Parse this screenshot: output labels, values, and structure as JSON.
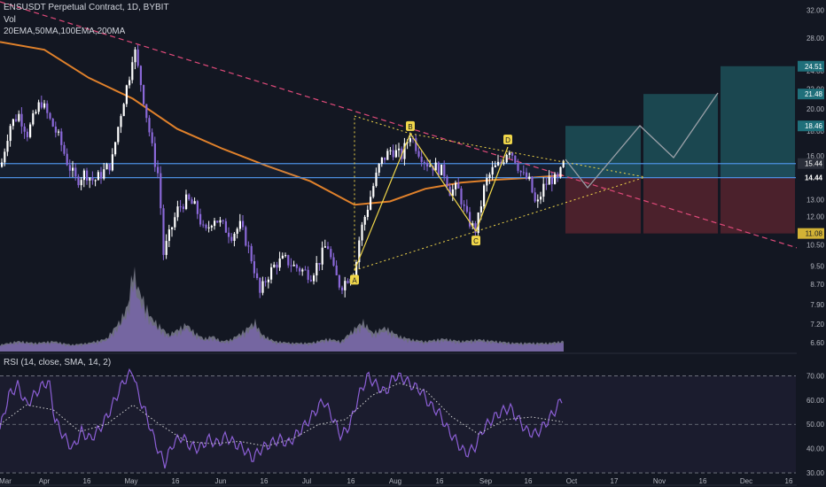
{
  "header": {
    "symbol_line": "ENSUSDT Perpetual Contract, 1D, BYBIT",
    "vol_label": "Vol",
    "ma_label": "20EMA,50MA,100EMA,200MA",
    "rsi_label": "RSI (14, close, SMA, 14, 2)"
  },
  "colors": {
    "background": "#131722",
    "candle": "#ffffff",
    "candle_alt": "#8a68d8",
    "volume_up": "#b7b7c8",
    "volume_down": "#7d60c0",
    "ma": "#e0812b",
    "resistance_line": "#e04a7a",
    "pattern": "#f0d64a",
    "horizontal": "#4d8fe0",
    "target_fill": "#1f5860",
    "stop_fill": "#5a2430",
    "rsi_line": "#8c5fd6",
    "rsi_sma": "#d0d0d0",
    "axis_text": "#b2b5be"
  },
  "chart_data": [
    {
      "type": "candlestick",
      "title": "ENSUSDT Perpetual Contract, 1D, BYBIT",
      "yscale": "log",
      "ylim": [
        6.3,
        33
      ],
      "x_ticks": [
        "Mar",
        "Apr",
        "16",
        "May",
        "16",
        "Jun",
        "16",
        "Jul",
        "16",
        "Aug",
        "16",
        "Sep",
        "16",
        "Oct",
        "17",
        "Nov",
        "16",
        "Dec",
        "16"
      ],
      "y_ticks": [
        32.0,
        28.0,
        24.0,
        22.0,
        20.0,
        18.0,
        16.0,
        13.0,
        12.0,
        10.5,
        9.5,
        8.7,
        7.9,
        7.2,
        6.6
      ],
      "price_labels": [
        {
          "text": "24.51",
          "value": 24.51,
          "kind": "target"
        },
        {
          "text": "21.48",
          "value": 21.48,
          "kind": "target"
        },
        {
          "text": "18.46",
          "value": 18.46,
          "kind": "target"
        },
        {
          "text": "15.44",
          "value": 15.44,
          "kind": "last"
        },
        {
          "text": "14.44",
          "value": 14.44,
          "kind": "level"
        },
        {
          "text": "11.08",
          "value": 11.08,
          "kind": "stop"
        }
      ],
      "horizontal_levels": [
        15.44,
        14.44
      ],
      "close_path": [
        [
          0,
          15.2
        ],
        [
          10,
          18.5
        ],
        [
          20,
          19.5
        ],
        [
          30,
          17.8
        ],
        [
          45,
          20.8
        ],
        [
          55,
          19.0
        ],
        [
          65,
          17.5
        ],
        [
          75,
          15.5
        ],
        [
          85,
          14.2
        ],
        [
          95,
          14.8
        ],
        [
          105,
          14.2
        ],
        [
          115,
          14.8
        ],
        [
          125,
          15.5
        ],
        [
          135,
          19.5
        ],
        [
          145,
          23.5
        ],
        [
          150,
          27.0
        ],
        [
          155,
          24.0
        ],
        [
          165,
          19.0
        ],
        [
          172,
          16.0
        ],
        [
          178,
          14.5
        ],
        [
          183,
          10.0
        ],
        [
          190,
          11.0
        ],
        [
          200,
          12.5
        ],
        [
          210,
          13.0
        ],
        [
          220,
          12.5
        ],
        [
          230,
          11.0
        ],
        [
          240,
          12.0
        ],
        [
          250,
          11.5
        ],
        [
          260,
          11.0
        ],
        [
          270,
          11.5
        ],
        [
          278,
          10.5
        ],
        [
          285,
          9.5
        ],
        [
          292,
          8.3
        ],
        [
          300,
          9.0
        ],
        [
          310,
          9.6
        ],
        [
          320,
          9.8
        ],
        [
          330,
          9.5
        ],
        [
          340,
          9.3
        ],
        [
          350,
          9.1
        ],
        [
          360,
          9.8
        ],
        [
          368,
          10.6
        ],
        [
          375,
          9.3
        ],
        [
          383,
          8.6
        ],
        [
          392,
          9.0
        ],
        [
          400,
          9.4
        ],
        [
          405,
          11.0
        ],
        [
          415,
          12.8
        ],
        [
          428,
          15.5
        ],
        [
          440,
          16.5
        ],
        [
          452,
          16.0
        ],
        [
          462,
          17.8
        ],
        [
          470,
          16.5
        ],
        [
          480,
          15.5
        ],
        [
          490,
          15.2
        ],
        [
          500,
          14.8
        ],
        [
          507,
          13.5
        ],
        [
          515,
          13.8
        ],
        [
          525,
          12.0
        ],
        [
          535,
          11.2
        ],
        [
          540,
          12.2
        ],
        [
          546,
          14.0
        ],
        [
          555,
          15.0
        ],
        [
          565,
          15.5
        ],
        [
          573,
          16.7
        ],
        [
          580,
          15.8
        ],
        [
          588,
          14.6
        ],
        [
          596,
          14.2
        ],
        [
          604,
          12.5
        ],
        [
          612,
          13.8
        ],
        [
          620,
          14.4
        ],
        [
          628,
          14.2
        ],
        [
          635,
          15.44
        ]
      ],
      "moving_average": [
        [
          0,
          27.5
        ],
        [
          50,
          26.5
        ],
        [
          100,
          23.2
        ],
        [
          150,
          21.0
        ],
        [
          200,
          18.2
        ],
        [
          250,
          16.6
        ],
        [
          300,
          15.3
        ],
        [
          350,
          14.2
        ],
        [
          400,
          12.7
        ],
        [
          440,
          12.9
        ],
        [
          480,
          13.7
        ],
        [
          520,
          14.1
        ],
        [
          560,
          14.3
        ],
        [
          600,
          14.44
        ],
        [
          635,
          14.6
        ]
      ]
    },
    {
      "type": "area",
      "title": "Vol",
      "x_ticks": [
        "Mar",
        "Apr",
        "16",
        "May",
        "16",
        "Jun",
        "16",
        "Jul",
        "16",
        "Aug",
        "16",
        "Sep",
        "16",
        "Oct"
      ],
      "values_note": "relative volume 0-1",
      "volume_path": [
        [
          0,
          0.08
        ],
        [
          20,
          0.12
        ],
        [
          40,
          0.1
        ],
        [
          60,
          0.12
        ],
        [
          80,
          0.08
        ],
        [
          100,
          0.1
        ],
        [
          120,
          0.15
        ],
        [
          135,
          0.35
        ],
        [
          145,
          0.55
        ],
        [
          150,
          1.0
        ],
        [
          155,
          0.75
        ],
        [
          162,
          0.6
        ],
        [
          170,
          0.4
        ],
        [
          180,
          0.3
        ],
        [
          190,
          0.2
        ],
        [
          200,
          0.25
        ],
        [
          210,
          0.32
        ],
        [
          220,
          0.22
        ],
        [
          230,
          0.15
        ],
        [
          240,
          0.18
        ],
        [
          250,
          0.12
        ],
        [
          260,
          0.14
        ],
        [
          270,
          0.2
        ],
        [
          280,
          0.28
        ],
        [
          288,
          0.35
        ],
        [
          295,
          0.2
        ],
        [
          310,
          0.12
        ],
        [
          330,
          0.1
        ],
        [
          350,
          0.1
        ],
        [
          370,
          0.15
        ],
        [
          385,
          0.12
        ],
        [
          398,
          0.25
        ],
        [
          410,
          0.35
        ],
        [
          420,
          0.22
        ],
        [
          435,
          0.28
        ],
        [
          450,
          0.18
        ],
        [
          465,
          0.14
        ],
        [
          480,
          0.12
        ],
        [
          500,
          0.15
        ],
        [
          520,
          0.12
        ],
        [
          540,
          0.14
        ],
        [
          560,
          0.12
        ],
        [
          580,
          0.1
        ],
        [
          600,
          0.1
        ],
        [
          620,
          0.1
        ],
        [
          635,
          0.12
        ]
      ]
    },
    {
      "type": "line",
      "title": "RSI (14, close, SMA, 14, 2)",
      "ylim": [
        26,
        76
      ],
      "y_ticks": [
        70.0,
        60.0,
        50.0,
        40.0,
        30.0
      ],
      "reference_band": [
        30,
        70
      ],
      "series": [
        {
          "values": [
            [
              0,
              48
            ],
            [
              10,
              62
            ],
            [
              20,
              66
            ],
            [
              30,
              58
            ],
            [
              45,
              65
            ],
            [
              55,
              68
            ],
            [
              62,
              52
            ],
            [
              72,
              45
            ],
            [
              82,
              40
            ],
            [
              92,
              47
            ],
            [
              102,
              44
            ],
            [
              112,
              48
            ],
            [
              122,
              54
            ],
            [
              132,
              62
            ],
            [
              140,
              68
            ],
            [
              150,
              72
            ],
            [
              156,
              62
            ],
            [
              164,
              55
            ],
            [
              172,
              46
            ],
            [
              180,
              38
            ],
            [
              186,
              34
            ],
            [
              195,
              42
            ],
            [
              205,
              45
            ],
            [
              215,
              41
            ],
            [
              225,
              40
            ],
            [
              235,
              44
            ],
            [
              245,
              42
            ],
            [
              255,
              45
            ],
            [
              265,
              42
            ],
            [
              275,
              40
            ],
            [
              285,
              36
            ],
            [
              295,
              40
            ],
            [
              305,
              42
            ],
            [
              315,
              44
            ],
            [
              325,
              42
            ],
            [
              335,
              46
            ],
            [
              345,
              50
            ],
            [
              355,
              55
            ],
            [
              365,
              60
            ],
            [
              375,
              53
            ],
            [
              385,
              45
            ],
            [
              395,
              50
            ],
            [
              405,
              62
            ],
            [
              415,
              70
            ],
            [
              425,
              66
            ],
            [
              435,
              63
            ],
            [
              445,
              70
            ],
            [
              455,
              69
            ],
            [
              465,
              66
            ],
            [
              475,
              64
            ],
            [
              485,
              58
            ],
            [
              495,
              55
            ],
            [
              505,
              48
            ],
            [
              515,
              43
            ],
            [
              525,
              38
            ],
            [
              535,
              40
            ],
            [
              545,
              48
            ],
            [
              555,
              52
            ],
            [
              565,
              55
            ],
            [
              575,
              57
            ],
            [
              585,
              52
            ],
            [
              595,
              47
            ],
            [
              605,
              46
            ],
            [
              615,
              50
            ],
            [
              625,
              55
            ],
            [
              635,
              61
            ]
          ]
        },
        {
          "values": [
            [
              0,
              50
            ],
            [
              30,
              58
            ],
            [
              60,
              56
            ],
            [
              90,
              47
            ],
            [
              120,
              50
            ],
            [
              150,
              58
            ],
            [
              180,
              50
            ],
            [
              210,
              43
            ],
            [
              240,
              42
            ],
            [
              270,
              43
            ],
            [
              300,
              41
            ],
            [
              330,
              44
            ],
            [
              360,
              50
            ],
            [
              390,
              52
            ],
            [
              420,
              62
            ],
            [
              450,
              67
            ],
            [
              480,
              64
            ],
            [
              510,
              53
            ],
            [
              540,
              46
            ],
            [
              570,
              52
            ],
            [
              600,
              53
            ],
            [
              635,
              51
            ]
          ]
        }
      ]
    }
  ],
  "annotations": {
    "pattern_points": [
      {
        "label": "A",
        "x": 400,
        "value": 9.3
      },
      {
        "label": "B",
        "x": 463,
        "value": 17.8
      },
      {
        "label": "C",
        "x": 537,
        "value": 11.2
      },
      {
        "label": "D",
        "x": 573,
        "value": 16.7
      }
    ]
  }
}
